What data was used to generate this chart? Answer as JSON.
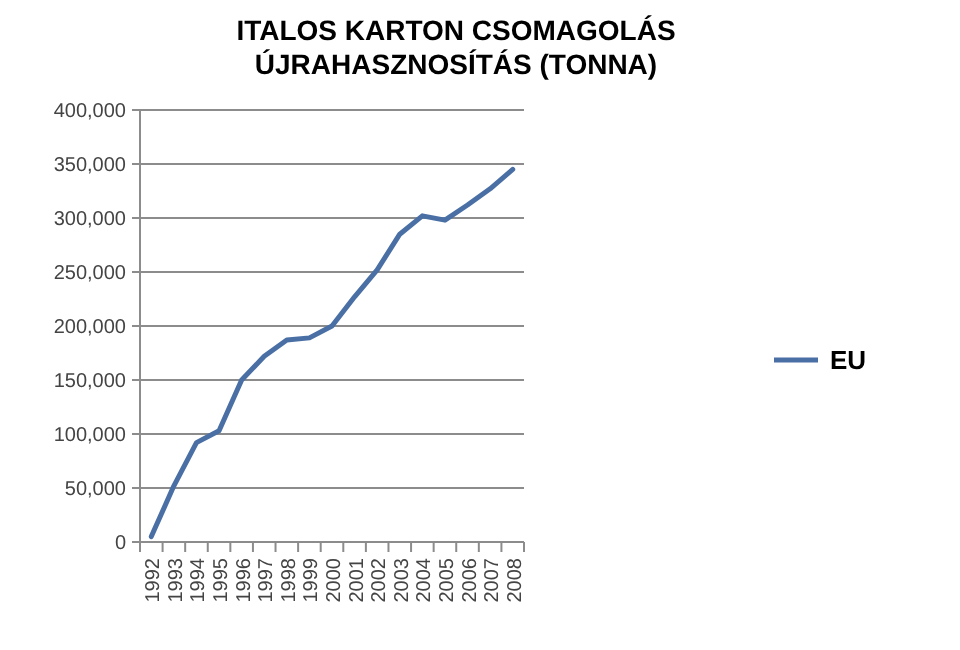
{
  "chart_data": {
    "type": "line",
    "title": "ITALOS KARTON CSOMAGOLÁS\nÚJRAHASZNOSÍTÁS (TONNA)",
    "categories": [
      "1992",
      "1993",
      "1994",
      "1995",
      "1996",
      "1997",
      "1998",
      "1999",
      "2000",
      "2001",
      "2002",
      "2003",
      "2004",
      "2005",
      "2006",
      "2007",
      "2008"
    ],
    "series": [
      {
        "name": "EU",
        "color": "#4a6fa5",
        "values": [
          5000,
          52000,
          92000,
          103000,
          150000,
          172000,
          187000,
          189000,
          200000,
          227000,
          252000,
          285000,
          302000,
          298000,
          312000,
          327000,
          345000
        ]
      }
    ],
    "ylim": [
      0,
      400000
    ],
    "yticks": [
      {
        "value": 0,
        "label": "0"
      },
      {
        "value": 50000,
        "label": "50,000"
      },
      {
        "value": 100000,
        "label": "100,000"
      },
      {
        "value": 150000,
        "label": "150,000"
      },
      {
        "value": 200000,
        "label": "200,000"
      },
      {
        "value": 250000,
        "label": "250,000"
      },
      {
        "value": 300000,
        "label": "300,000"
      },
      {
        "value": 350000,
        "label": "350,000"
      },
      {
        "value": 400000,
        "label": "400,000"
      }
    ],
    "grid": "y",
    "legend": "right",
    "marker": "none",
    "line_style": "solid"
  }
}
